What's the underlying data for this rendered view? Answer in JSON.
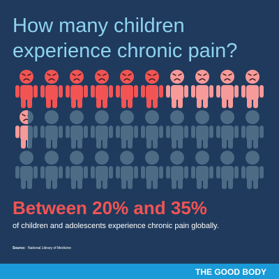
{
  "header": {
    "title_line1": "How many children",
    "title_line2": "experience chronic pain?"
  },
  "headline": "Between 20% and 35%",
  "subtext": "of children and adolescents experience chronic pain globally.",
  "source": {
    "label": "Source:",
    "text": "National Library of Medicine"
  },
  "footer": {
    "brand": "THE GOOD BODY"
  }
}
